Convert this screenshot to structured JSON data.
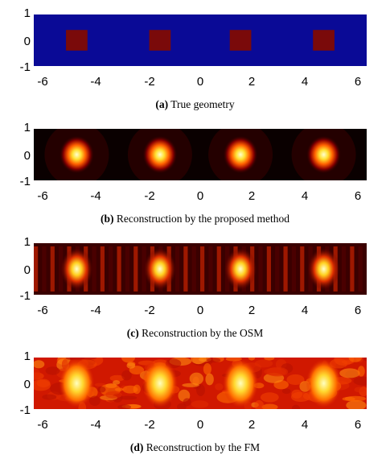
{
  "figure": {
    "panels": [
      {
        "id": "a",
        "tag": "(a)",
        "caption": "True geometry",
        "style": "geometry"
      },
      {
        "id": "b",
        "tag": "(b)",
        "caption": "Reconstruction by the proposed method",
        "style": "proposed"
      },
      {
        "id": "c",
        "tag": "(c)",
        "caption": "Reconstruction by the OSM",
        "style": "osm"
      },
      {
        "id": "d",
        "tag": "(d)",
        "caption": "Reconstruction by the FM",
        "style": "fm"
      }
    ]
  },
  "chart_data": [
    {
      "type": "heatmap",
      "title": "True geometry",
      "xlim": [
        -6.2,
        6.2
      ],
      "ylim": [
        -1,
        1
      ],
      "xticks": [
        "-6",
        "-4",
        "-2",
        "0",
        "2",
        "4",
        "6"
      ],
      "yticks": [
        "1",
        "0",
        "-1"
      ],
      "background_color": "#0a0a96",
      "inclusion_color": "#7a0a0a",
      "inclusions": [
        {
          "x_range": [
            -5.0,
            -4.2
          ],
          "y_range": [
            -0.4,
            0.4
          ]
        },
        {
          "x_range": [
            -1.9,
            -1.1
          ],
          "y_range": [
            -0.4,
            0.4
          ]
        },
        {
          "x_range": [
            1.1,
            1.9
          ],
          "y_range": [
            -0.4,
            0.4
          ]
        },
        {
          "x_range": [
            4.2,
            5.0
          ],
          "y_range": [
            -0.4,
            0.4
          ]
        }
      ]
    },
    {
      "type": "heatmap",
      "title": "Reconstruction by the proposed method",
      "colormap": "hot",
      "xlim": [
        -6.2,
        6.2
      ],
      "ylim": [
        -1,
        1
      ],
      "xticks": [
        "-6",
        "-4",
        "-2",
        "0",
        "2",
        "4",
        "6"
      ],
      "yticks": [
        "1",
        "0",
        "-1"
      ],
      "peak_centers": [
        [
          -4.6,
          0
        ],
        [
          -1.5,
          0
        ],
        [
          1.5,
          0
        ],
        [
          4.6,
          0
        ]
      ]
    },
    {
      "type": "heatmap",
      "title": "Reconstruction by the OSM",
      "colormap": "hot",
      "xlim": [
        -6.2,
        6.2
      ],
      "ylim": [
        -1,
        1
      ],
      "xticks": [
        "-6",
        "-4",
        "-2",
        "0",
        "2",
        "4",
        "6"
      ],
      "yticks": [
        "1",
        "0",
        "-1"
      ],
      "peak_centers": [
        [
          -4.6,
          0
        ],
        [
          -1.5,
          0
        ],
        [
          1.5,
          0
        ],
        [
          4.6,
          0
        ]
      ]
    },
    {
      "type": "heatmap",
      "title": "Reconstruction by the FM",
      "colormap": "hot",
      "xlim": [
        -6.2,
        6.2
      ],
      "ylim": [
        -1,
        1
      ],
      "xticks": [
        "-6",
        "-4",
        "-2",
        "0",
        "2",
        "4",
        "6"
      ],
      "yticks": [
        "1",
        "0",
        "-1"
      ],
      "peak_centers": [
        [
          -4.6,
          0
        ],
        [
          -1.5,
          0
        ],
        [
          1.5,
          0
        ],
        [
          4.6,
          0
        ]
      ]
    }
  ]
}
